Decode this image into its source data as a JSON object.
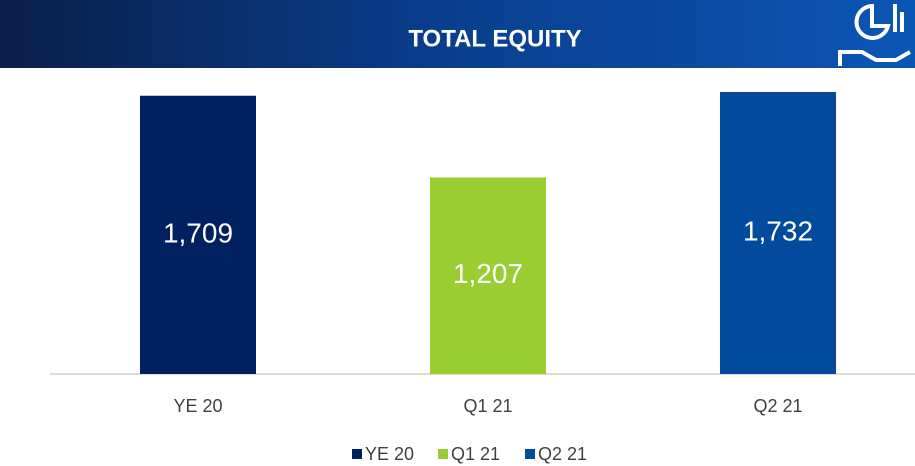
{
  "chart_data": {
    "type": "bar",
    "title": "TOTAL EQUITY",
    "categories": [
      "YE 20",
      "Q1 21",
      "Q2 21"
    ],
    "values": [
      1709,
      1207,
      1732
    ],
    "value_labels": [
      "1,709",
      "1,207",
      "1,732"
    ],
    "colors": [
      "#002060",
      "#9ACD32",
      "#024A9C"
    ]
  }
}
